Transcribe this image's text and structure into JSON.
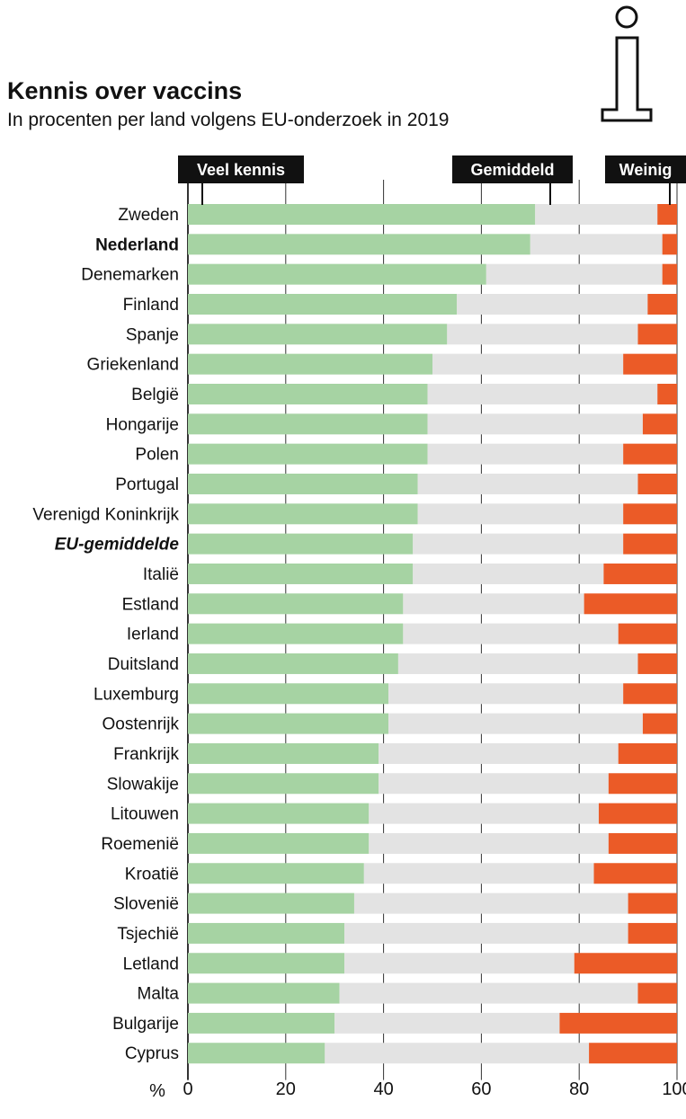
{
  "chart_data": {
    "type": "bar",
    "stacked": true,
    "orientation": "horizontal",
    "title": "Kennis over vaccins",
    "subtitle": "In procenten per land volgens EU-onderzoek in 2019",
    "xlabel": "%",
    "xlim": [
      0,
      100
    ],
    "xticks": [
      "0",
      "20",
      "40",
      "60",
      "80",
      "100"
    ],
    "legend": [
      "Veel kennis",
      "Gemiddeld",
      "Weinig"
    ],
    "colors": {
      "Veel kennis": "#a6d3a3",
      "Gemiddeld": "#e3e3e3",
      "Weinig": "#eb5b27"
    },
    "highlight": {
      "Nederland": "bold",
      "EU-gemiddelde": "bold-italic"
    },
    "categories": [
      "Zweden",
      "Nederland",
      "Denemarken",
      "Finland",
      "Spanje",
      "Griekenland",
      "België",
      "Hongarije",
      "Polen",
      "Portugal",
      "Verenigd Koninkrijk",
      "EU-gemiddelde",
      "Italië",
      "Estland",
      "Ierland",
      "Duitsland",
      "Luxemburg",
      "Oostenrijk",
      "Frankrijk",
      "Slowakije",
      "Litouwen",
      "Roemenië",
      "Kroatië",
      "Slovenië",
      "Tsjechië",
      "Letland",
      "Malta",
      "Bulgarije",
      "Cyprus"
    ],
    "series": [
      {
        "name": "Veel kennis",
        "values": [
          71,
          70,
          61,
          55,
          53,
          50,
          49,
          49,
          49,
          47,
          47,
          46,
          46,
          44,
          44,
          43,
          41,
          41,
          39,
          39,
          37,
          37,
          36,
          34,
          32,
          32,
          31,
          30,
          28
        ]
      },
      {
        "name": "Gemiddeld",
        "values": [
          25,
          27,
          36,
          39,
          39,
          39,
          47,
          44,
          40,
          45,
          42,
          43,
          39,
          37,
          44,
          49,
          48,
          52,
          49,
          47,
          47,
          49,
          47,
          56,
          58,
          47,
          61,
          46,
          54
        ]
      },
      {
        "name": "Weinig",
        "values": [
          4,
          3,
          3,
          6,
          8,
          11,
          4,
          7,
          11,
          8,
          11,
          11,
          15,
          19,
          12,
          8,
          11,
          7,
          12,
          14,
          16,
          14,
          17,
          10,
          10,
          21,
          8,
          24,
          18
        ]
      }
    ]
  }
}
